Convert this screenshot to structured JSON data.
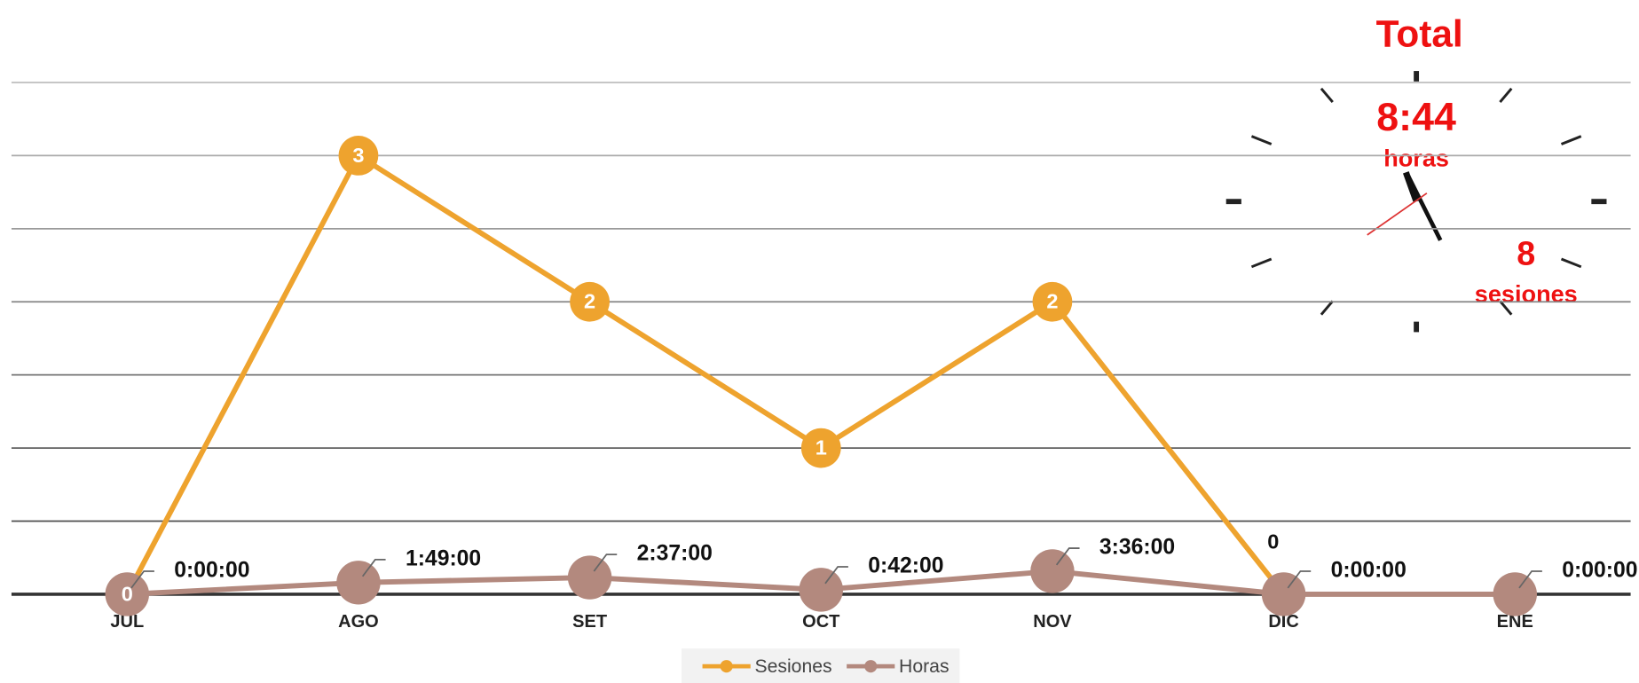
{
  "chart_data": {
    "type": "line",
    "categories": [
      "JUL",
      "AGO",
      "SET",
      "OCT",
      "NOV",
      "DIC",
      "ENE"
    ],
    "series": [
      {
        "name": "Sesiones",
        "color": "#eea32e",
        "values": [
          0,
          3,
          2,
          1,
          2,
          0,
          null
        ]
      },
      {
        "name": "Horas",
        "color": "#b3897e",
        "axis": "y2",
        "values": [
          0,
          1.8167,
          2.6167,
          0.7,
          3.6,
          0,
          0
        ],
        "value_labels": [
          "0:00:00",
          "1:49:00",
          "2:37:00",
          "0:42:00",
          "3:36:00",
          "0:00:00",
          "0:00:00"
        ]
      }
    ],
    "ylim": [
      0,
      3.5
    ],
    "yticks": [
      0,
      0.5,
      1,
      1.5,
      2,
      2.5,
      3,
      3.5
    ],
    "y2lim": [
      0,
      80
    ],
    "grid": true,
    "show_ytick_labels": false,
    "legend": "bottom"
  },
  "summary": {
    "title": "Total",
    "hours": "8:44",
    "hours_label": "horas",
    "sessions": 8,
    "sessions_label": "sesiones"
  }
}
